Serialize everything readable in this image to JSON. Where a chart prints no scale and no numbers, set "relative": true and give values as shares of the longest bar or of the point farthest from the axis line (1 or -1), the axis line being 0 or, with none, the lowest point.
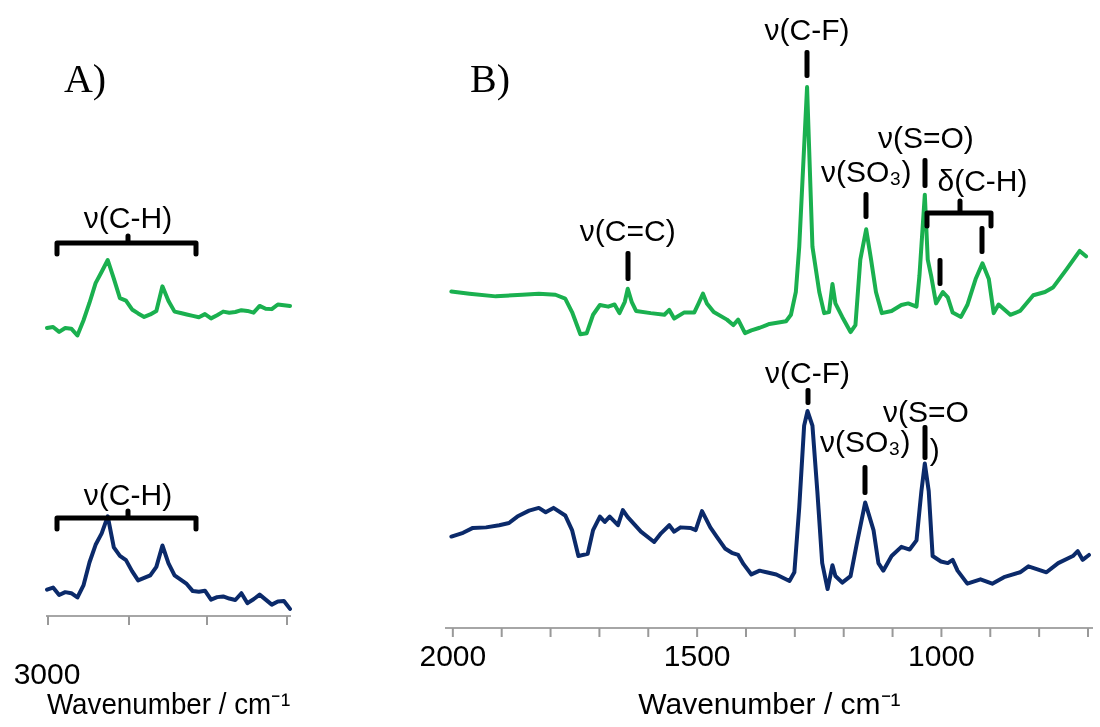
{
  "chart_data": [
    {
      "type": "line",
      "title": "A)",
      "xlabel": "Wavenumber / cm⁻¹",
      "relative": true,
      "marker": "none",
      "categories": [
        null,
        null,
        null,
        null,
        null,
        null,
        null,
        null,
        null,
        null,
        null,
        null,
        null,
        null,
        null,
        null,
        null,
        null,
        null,
        null,
        null,
        null,
        null,
        null,
        null,
        null,
        null,
        null,
        null,
        null,
        null,
        null,
        null,
        null,
        null,
        null,
        null,
        null,
        null,
        null,
        null
      ],
      "series": [
        {
          "color": "#1ab04f",
          "values": [
            0.809,
            0.812,
            0.798,
            0.809,
            0.807,
            0.788,
            0.83,
            0.88,
            0.935,
            0.967,
            1,
            0.948,
            0.893,
            0.886,
            0.861,
            0.85,
            0.84,
            0.847,
            0.857,
            0.926,
            0.885,
            0.855,
            0.851,
            0.847,
            0.843,
            0.839,
            0.848,
            0.836,
            0.845,
            0.855,
            0.852,
            0.854,
            0.859,
            0.857,
            0.852,
            0.871,
            0.863,
            0.862,
            0.875,
            0.873,
            0.871
          ]
        },
        {
          "color": "#0b2a6a",
          "values": [
            0.074,
            0.08,
            0.059,
            0.067,
            0.064,
            0.052,
            0.086,
            0.151,
            0.2,
            0.232,
            0.28,
            0.193,
            0.169,
            0.157,
            0.126,
            0.1,
            0.107,
            0.114,
            0.138,
            0.198,
            0.148,
            0.114,
            0.102,
            0.09,
            0.07,
            0.068,
            0.071,
            0.046,
            0.053,
            0.055,
            0.049,
            0.045,
            0.064,
            0.036,
            0.047,
            0.06,
            0.046,
            0.032,
            0.041,
            0.042,
            0.02
          ]
        }
      ],
      "annotations": [
        "3000",
        "ν(C-H)",
        "ν(C-H)"
      ]
    },
    {
      "type": "line",
      "title": "B)",
      "xlabel": "Wavenumber / cm⁻¹",
      "relative": true,
      "marker": "none",
      "tick_labels": "x",
      "xlim": [
        2014,
        690
      ],
      "xticks": [
        2000,
        {
          "value": 1900,
          "label": null
        },
        {
          "value": 1800,
          "label": null
        },
        {
          "value": 1700,
          "label": null
        },
        {
          "value": 1600,
          "label": null
        },
        1500,
        {
          "value": 1400,
          "label": null
        },
        {
          "value": 1300,
          "label": null
        },
        {
          "value": 1200,
          "label": null
        },
        {
          "value": 1100,
          "label": null
        },
        1000,
        {
          "value": 900,
          "label": null
        },
        {
          "value": 800,
          "label": null
        },
        {
          "value": 700,
          "label": null
        }
      ],
      "series": [
        {
          "color": "#1ab04f",
          "x": [
            2003,
            1966,
            1912,
            1858,
            1824,
            1790,
            1770,
            1756,
            1739,
            1726,
            1713,
            1699,
            1682,
            1669,
            1659,
            1648,
            1642,
            1634,
            1625,
            1595,
            1567,
            1557,
            1547,
            1527,
            1506,
            1497,
            1488,
            1480,
            1466,
            1439,
            1426,
            1416,
            1402,
            1389,
            1372,
            1358,
            1352,
            1318,
            1308,
            1298,
            1291,
            1275,
            1264,
            1250,
            1240,
            1230,
            1223,
            1217,
            1203,
            1186,
            1176,
            1166,
            1154,
            1144,
            1134,
            1122,
            1102,
            1082,
            1068,
            1051,
            1045,
            1034,
            1028,
            1021,
            1011,
            997,
            987,
            977,
            960,
            947,
            930,
            916,
            903,
            893,
            883,
            859,
            839,
            812,
            788,
            771,
            744,
            717,
            704
          ],
          "values": [
            0.622,
            0.618,
            0.613,
            0.616,
            0.618,
            0.616,
            0.609,
            0.584,
            0.543,
            0.545,
            0.579,
            0.597,
            0.594,
            0.598,
            0.582,
            0.603,
            0.627,
            0.603,
            0.586,
            0.582,
            0.579,
            0.588,
            0.572,
            0.583,
            0.583,
            0.6,
            0.618,
            0.6,
            0.584,
            0.57,
            0.56,
            0.57,
            0.545,
            0.55,
            0.555,
            0.56,
            0.562,
            0.567,
            0.579,
            0.621,
            0.705,
            1,
            0.705,
            0.621,
            0.582,
            0.584,
            0.636,
            0.6,
            0.575,
            0.547,
            0.56,
            0.681,
            0.737,
            0.681,
            0.621,
            0.582,
            0.586,
            0.597,
            0.6,
            0.594,
            0.651,
            0.801,
            0.681,
            0.651,
            0.6,
            0.621,
            0.611,
            0.583,
            0.575,
            0.597,
            0.645,
            0.674,
            0.645,
            0.582,
            0.598,
            0.579,
            0.586,
            0.615,
            0.621,
            0.63,
            0.663,
            0.697,
            0.687
          ]
        },
        {
          "color": "#0b2a6a",
          "x": [
            2003,
            1979,
            1959,
            1932,
            1905,
            1885,
            1868,
            1844,
            1824,
            1810,
            1794,
            1770,
            1756,
            1743,
            1724,
            1713,
            1699,
            1689,
            1679,
            1662,
            1652,
            1642,
            1615,
            1588,
            1574,
            1557,
            1547,
            1534,
            1514,
            1503,
            1490,
            1473,
            1460,
            1443,
            1429,
            1416,
            1405,
            1389,
            1372,
            1358,
            1338,
            1311,
            1301,
            1291,
            1281,
            1274,
            1264,
            1254,
            1244,
            1233,
            1223,
            1217,
            1203,
            1186,
            1173,
            1156,
            1139,
            1129,
            1119,
            1102,
            1082,
            1065,
            1051,
            1041,
            1034,
            1026,
            1018,
            1001,
            987,
            977,
            967,
            947,
            920,
            896,
            872,
            839,
            822,
            805,
            785,
            761,
            731,
            721,
            711,
            698
          ],
          "values": [
            0.169,
            0.176,
            0.185,
            0.186,
            0.19,
            0.194,
            0.206,
            0.217,
            0.222,
            0.214,
            0.222,
            0.208,
            0.181,
            0.133,
            0.137,
            0.181,
            0.206,
            0.196,
            0.206,
            0.19,
            0.218,
            0.205,
            0.178,
            0.159,
            0.175,
            0.19,
            0.178,
            0.186,
            0.185,
            0.181,
            0.216,
            0.186,
            0.169,
            0.147,
            0.139,
            0.135,
            0.118,
            0.099,
            0.106,
            0.103,
            0.099,
            0.087,
            0.103,
            0.223,
            0.374,
            0.401,
            0.374,
            0.253,
            0.12,
            0.072,
            0.116,
            0.096,
            0.084,
            0.096,
            0.157,
            0.232,
            0.181,
            0.12,
            0.106,
            0.133,
            0.15,
            0.145,
            0.162,
            0.253,
            0.304,
            0.253,
            0.133,
            0.123,
            0.12,
            0.126,
            0.106,
            0.082,
            0.09,
            0.082,
            0.094,
            0.103,
            0.114,
            0.109,
            0.103,
            0.12,
            0.133,
            0.142,
            0.126,
            0.135
          ]
        }
      ],
      "annotations": [
        {
          "text": "ν(C=C)",
          "x": 1642,
          "y": 0.627
        },
        {
          "text": "ν(C-F)",
          "x": 1275,
          "y": 1
        },
        {
          "text": "ν(SO₃)",
          "x": 1154,
          "y": 0.737
        },
        {
          "text": "ν(S=O)",
          "x": 1034,
          "y": 0.801
        },
        {
          "text": "δ(C-H)",
          "x": 916,
          "y": 0.674
        },
        {
          "text": "ν(C-F)",
          "x": 1274,
          "y": 0.401
        },
        {
          "text": "ν(SO₃)",
          "x": 1156,
          "y": 0.232
        },
        {
          "text": "ν(S=O",
          "x": 1034,
          "y": 0.304
        },
        {
          "text": ")",
          "x": 1034,
          "y": 0.304
        }
      ]
    }
  ]
}
